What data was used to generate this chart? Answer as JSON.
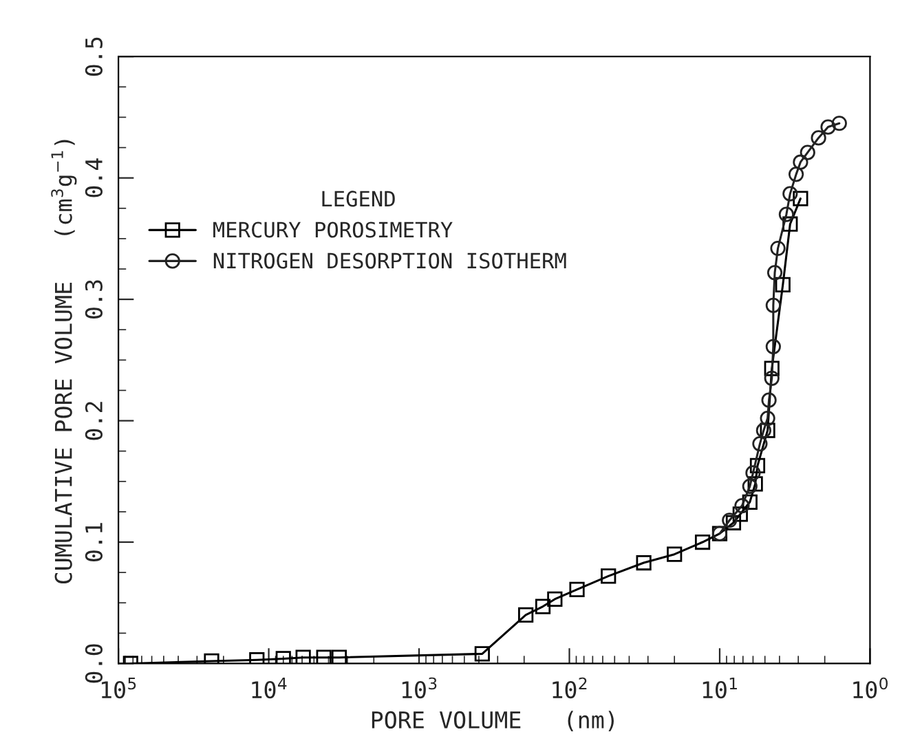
{
  "chart_data": {
    "type": "line",
    "xlabel": "PORE VOLUME   (nm)",
    "ylabel": "CUMULATIVE PORE VOLUME   (cm$^{3}$g$^{−1}$)",
    "legend_title": "LEGEND",
    "legend": "top left",
    "log": "x",
    "grid": false,
    "line_style": "solid",
    "xlim": [
      100000,
      1
    ],
    "xticks": [
      {
        "value": 100000,
        "label": "10$^{5}$"
      },
      {
        "value": 10000,
        "label": "10$^{4}$"
      },
      {
        "value": 1000,
        "label": "10$^{3}$"
      },
      {
        "value": 100,
        "label": "10$^{2}$"
      },
      {
        "value": 10,
        "label": "10$^{1}$"
      },
      {
        "value": 1,
        "label": "10$^{0}$"
      }
    ],
    "ylim": [
      0,
      0.5
    ],
    "yticks": [
      {
        "value": 0,
        "label": "0.0"
      },
      {
        "value": 0.1,
        "label": "0.1"
      },
      {
        "value": 0.2,
        "label": "0.2"
      },
      {
        "value": 0.3,
        "label": "0.3"
      },
      {
        "value": 0.4,
        "label": "0.4"
      },
      {
        "value": 0.5,
        "label": "0.5"
      }
    ],
    "series": [
      {
        "name": "MERCURY POROSIMETRY",
        "color": "#000000",
        "marker": "square",
        "x": [
          83000,
          24000,
          12000,
          8000,
          5900,
          4300,
          3400,
          380,
          195,
          150,
          125,
          89,
          55,
          32,
          20,
          13,
          10,
          8.1,
          7.3,
          6.3,
          5.8,
          5.6,
          4.8,
          4.5,
          3.8,
          3.4,
          2.9
        ],
        "values": [
          0.0,
          0.002,
          0.003,
          0.004,
          0.005,
          0.005,
          0.005,
          0.008,
          0.04,
          0.047,
          0.053,
          0.061,
          0.072,
          0.083,
          0.09,
          0.1,
          0.107,
          0.116,
          0.123,
          0.133,
          0.148,
          0.163,
          0.192,
          0.243,
          0.312,
          0.362,
          0.383
        ]
      },
      {
        "name": "NITROGEN DESORPTION ISOTHERM",
        "color": "#222222",
        "marker": "circle",
        "x": [
          10,
          8.6,
          7.1,
          6.3,
          6.0,
          5.4,
          5.1,
          4.8,
          4.7,
          4.5,
          4.4,
          4.4,
          4.3,
          4.1,
          3.6,
          3.4,
          3.1,
          2.9,
          2.6,
          2.2,
          1.9,
          1.6
        ],
        "values": [
          0.107,
          0.118,
          0.13,
          0.146,
          0.157,
          0.181,
          0.192,
          0.202,
          0.217,
          0.235,
          0.261,
          0.295,
          0.322,
          0.342,
          0.37,
          0.387,
          0.403,
          0.413,
          0.421,
          0.433,
          0.442,
          0.445
        ]
      }
    ]
  }
}
